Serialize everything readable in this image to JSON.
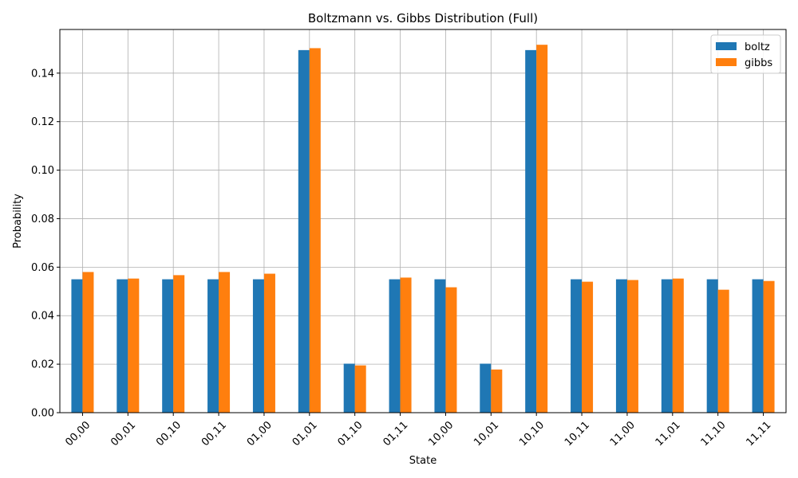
{
  "chart_data": {
    "type": "bar",
    "title": "Boltzmann vs. Gibbs Distribution (Full)",
    "xlabel": "State",
    "ylabel": "Probability",
    "categories": [
      "00,00",
      "00,01",
      "00,10",
      "00,11",
      "01,00",
      "01,01",
      "01,10",
      "01,11",
      "10,00",
      "10,01",
      "10,10",
      "10,11",
      "11,00",
      "11,01",
      "11,10",
      "11,11"
    ],
    "series": [
      {
        "name": "boltz",
        "color": "#1f77b4",
        "values": [
          0.055,
          0.055,
          0.055,
          0.055,
          0.055,
          0.1495,
          0.0202,
          0.055,
          0.055,
          0.0202,
          0.1495,
          0.055,
          0.055,
          0.055,
          0.055,
          0.055
        ]
      },
      {
        "name": "gibbs",
        "color": "#ff7f0e",
        "values": [
          0.058,
          0.0553,
          0.0567,
          0.058,
          0.0573,
          0.1503,
          0.0195,
          0.0557,
          0.0517,
          0.0178,
          0.1517,
          0.054,
          0.0547,
          0.0553,
          0.0507,
          0.0543
        ]
      }
    ],
    "ylim": [
      0,
      0.158
    ],
    "yticks": [
      "0.00",
      "0.02",
      "0.04",
      "0.06",
      "0.08",
      "0.10",
      "0.12",
      "0.14"
    ],
    "grid": true,
    "legend_position": "top-right"
  }
}
